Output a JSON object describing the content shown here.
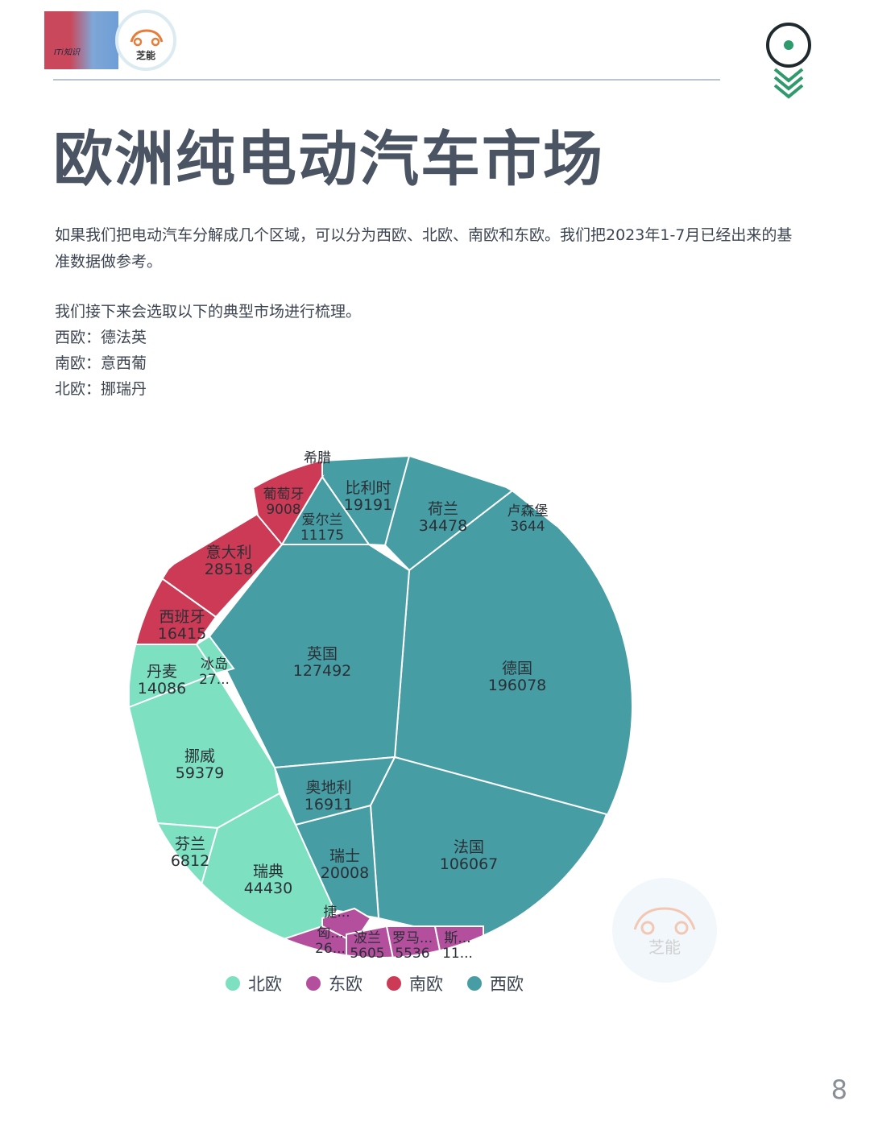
{
  "header": {
    "logo_photo_text": "ITi知识",
    "logo_text": "芝能",
    "nav_icon": "target-chevrons-icon"
  },
  "title": "欧洲纯电动汽车市场",
  "intro": "如果我们把电动汽车分解成几个区域，可以分为西欧、北欧、南欧和东欧。我们把2023年1-7月已经出来的基准数据做参考。",
  "selection_text": "我们接下来会选取以下的典型市场进行梳理。",
  "regions_list": [
    "西欧：德法英",
    "南欧：意西葡",
    "北欧：挪瑞丹"
  ],
  "chart_data": {
    "type": "voronoi-treemap",
    "title": "",
    "groups": [
      {
        "name": "西欧",
        "color": "#469ea4",
        "items": [
          {
            "name": "德国",
            "value": 196078
          },
          {
            "name": "英国",
            "value": 127492
          },
          {
            "name": "法国",
            "value": 106067
          },
          {
            "name": "荷兰",
            "value": 34478
          },
          {
            "name": "瑞士",
            "value": 20008
          },
          {
            "name": "比利时",
            "value": 19191
          },
          {
            "name": "奥地利",
            "value": 16911
          },
          {
            "name": "爱尔兰",
            "value": 11175
          },
          {
            "name": "卢森堡",
            "value": 3644
          }
        ]
      },
      {
        "name": "北欧",
        "color": "#7de0c0",
        "items": [
          {
            "name": "挪威",
            "value": 59379
          },
          {
            "name": "瑞典",
            "value": 44430
          },
          {
            "name": "丹麦",
            "value": 14086
          },
          {
            "name": "芬兰",
            "value": 6812
          },
          {
            "name": "冰岛",
            "value": "27..."
          }
        ]
      },
      {
        "name": "南欧",
        "color": "#cc3a55",
        "items": [
          {
            "name": "意大利",
            "value": 28518
          },
          {
            "name": "西班牙",
            "value": 16415
          },
          {
            "name": "葡萄牙",
            "value": 9008
          },
          {
            "name": "希腊",
            "value": ""
          }
        ]
      },
      {
        "name": "东欧",
        "color": "#b44f9e",
        "items": [
          {
            "name": "波兰",
            "value": 5605
          },
          {
            "name": "罗马...",
            "value": 5536
          },
          {
            "name": "匈...",
            "value": "26..."
          },
          {
            "name": "斯...",
            "value": "11..."
          },
          {
            "name": "捷...",
            "value": ""
          }
        ]
      }
    ],
    "legend": [
      "北欧",
      "东欧",
      "南欧",
      "西欧"
    ],
    "legend_colors": [
      "#7de0c0",
      "#b44f9e",
      "#cc3a55",
      "#469ea4"
    ],
    "legend_position": "bottom"
  },
  "watermark_text": "芝能",
  "page_number": "8"
}
